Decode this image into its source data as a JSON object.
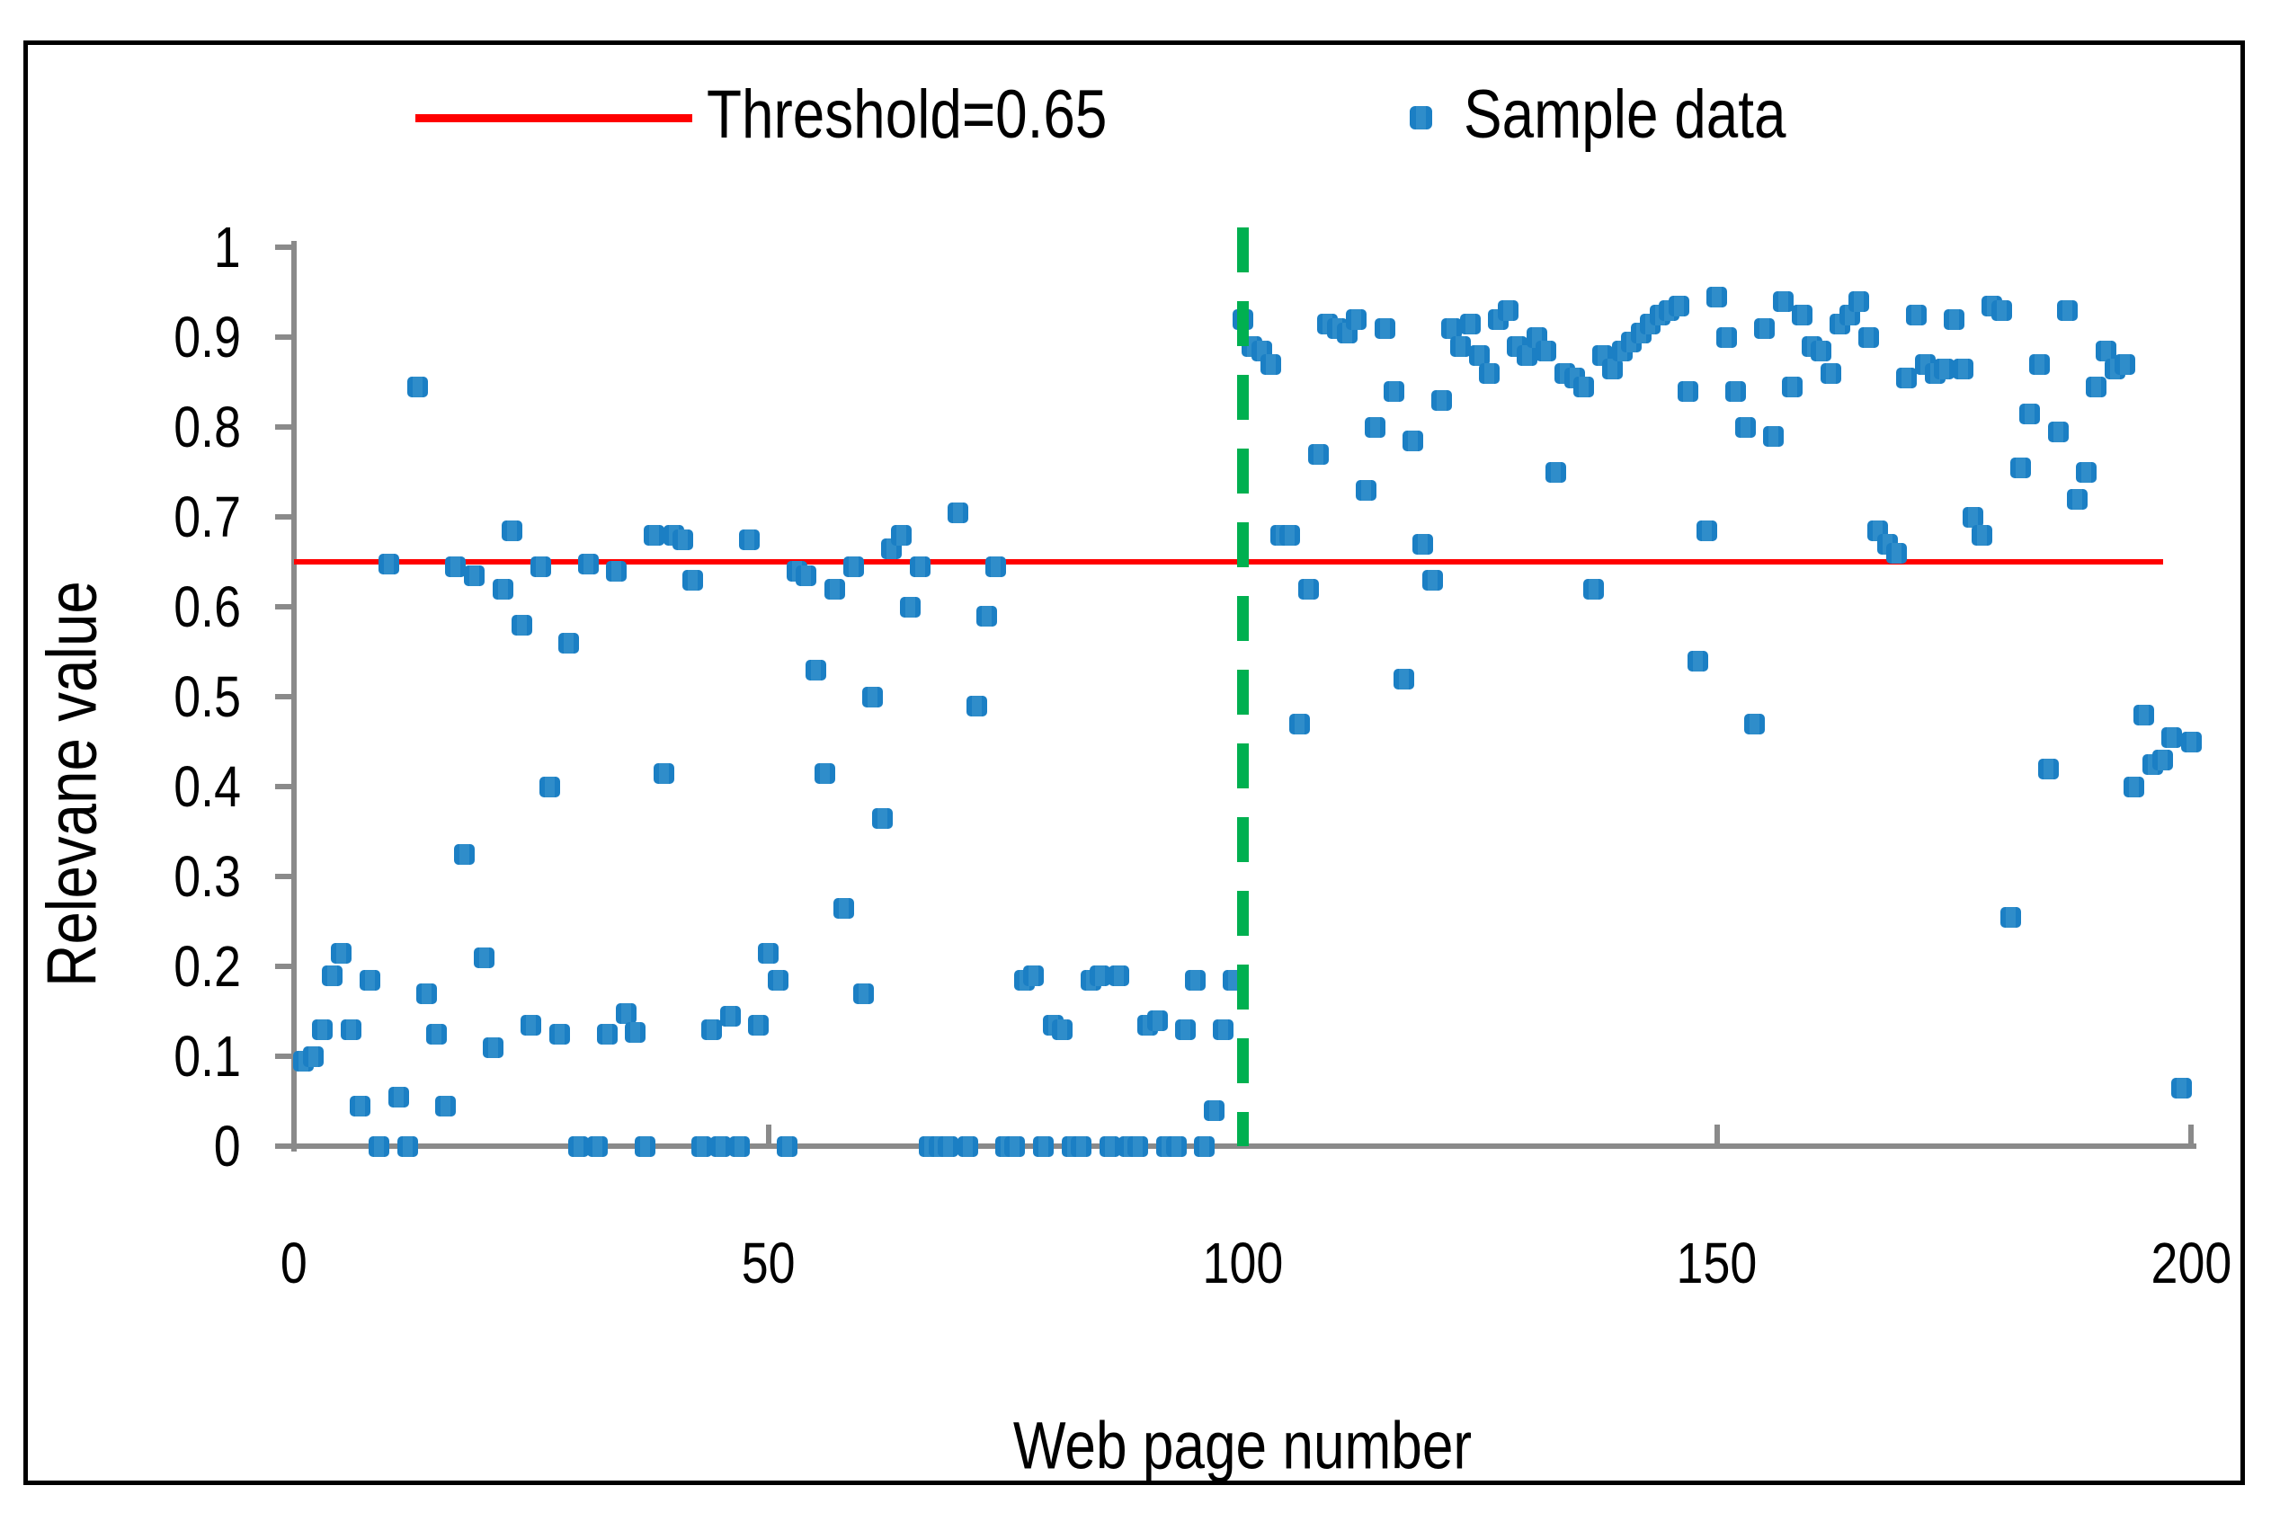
{
  "legend": {
    "threshold_label": "Threshold=0.65",
    "sample_label": "Sample data"
  },
  "axes": {
    "y_title": "Relevane value",
    "x_title": "Web page number",
    "y_tick_labels": [
      "1",
      "0.9",
      "0.8",
      "0.7",
      "0.6",
      "0.5",
      "0.4",
      "0.3",
      "0.2",
      "0.1",
      "0"
    ],
    "x_tick_labels": [
      "0",
      "50",
      "100",
      "150",
      "200"
    ]
  },
  "colors": {
    "threshold_line": "#ff0000",
    "divider_line": "#00b050",
    "marker_fill": "#1b7fc4",
    "marker_inner": "#2f8dca",
    "axis": "#8a8a8a",
    "text": "#000000",
    "figure_border": "#000000"
  },
  "chart_data": {
    "type": "scatter",
    "title": "",
    "xlabel": "Web page number",
    "ylabel": "Relevane value",
    "xlim": [
      0,
      200
    ],
    "ylim": [
      0,
      1
    ],
    "x_ticks": [
      0,
      50,
      100,
      150,
      200
    ],
    "y_ticks": [
      0,
      0.1,
      0.2,
      0.3,
      0.4,
      0.5,
      0.6,
      0.7,
      0.8,
      0.9,
      1
    ],
    "grid": false,
    "legend_position": "top",
    "threshold_value": 0.65,
    "divider_x": 100,
    "series": [
      {
        "name": "Sample data",
        "points": [
          [
            1,
            0.095
          ],
          [
            2,
            0.1
          ],
          [
            3,
            0.13
          ],
          [
            4,
            0.19
          ],
          [
            5,
            0.215
          ],
          [
            6,
            0.13
          ],
          [
            7,
            0.045
          ],
          [
            8,
            0.185
          ],
          [
            9,
            0
          ],
          [
            10,
            0.648
          ],
          [
            11,
            0.055
          ],
          [
            12,
            0
          ],
          [
            13,
            0.845
          ],
          [
            14,
            0.17
          ],
          [
            15,
            0.125
          ],
          [
            16,
            0.045
          ],
          [
            17,
            0.645
          ],
          [
            18,
            0.325
          ],
          [
            19,
            0.635
          ],
          [
            20,
            0.21
          ],
          [
            21,
            0.11
          ],
          [
            22,
            0.62
          ],
          [
            23,
            0.685
          ],
          [
            24,
            0.58
          ],
          [
            25,
            0.135
          ],
          [
            26,
            0.645
          ],
          [
            27,
            0.4
          ],
          [
            28,
            0.125
          ],
          [
            29,
            0.56
          ],
          [
            30,
            0
          ],
          [
            31,
            0.648
          ],
          [
            32,
            0
          ],
          [
            33,
            0.125
          ],
          [
            34,
            0.64
          ],
          [
            35,
            0.148
          ],
          [
            36,
            0.127
          ],
          [
            37,
            0
          ],
          [
            38,
            0.68
          ],
          [
            39,
            0.415
          ],
          [
            40,
            0.68
          ],
          [
            41,
            0.675
          ],
          [
            42,
            0.63
          ],
          [
            43,
            0
          ],
          [
            44,
            0.13
          ],
          [
            45,
            0
          ],
          [
            46,
            0.145
          ],
          [
            47,
            0
          ],
          [
            48,
            0.675
          ],
          [
            49,
            0.135
          ],
          [
            50,
            0.215
          ],
          [
            51,
            0.185
          ],
          [
            52,
            0
          ],
          [
            53,
            0.64
          ],
          [
            54,
            0.635
          ],
          [
            55,
            0.53
          ],
          [
            56,
            0.415
          ],
          [
            57,
            0.62
          ],
          [
            58,
            0.265
          ],
          [
            59,
            0.645
          ],
          [
            60,
            0.17
          ],
          [
            61,
            0.5
          ],
          [
            62,
            0.365
          ],
          [
            63,
            0.665
          ],
          [
            64,
            0.68
          ],
          [
            65,
            0.6
          ],
          [
            66,
            0.645
          ],
          [
            67,
            0
          ],
          [
            68,
            0
          ],
          [
            69,
            0
          ],
          [
            70,
            0.705
          ],
          [
            71,
            0
          ],
          [
            72,
            0.49
          ],
          [
            73,
            0.59
          ],
          [
            74,
            0.645
          ],
          [
            75,
            0
          ],
          [
            76,
            0
          ],
          [
            77,
            0.185
          ],
          [
            78,
            0.19
          ],
          [
            79,
            0
          ],
          [
            80,
            0.135
          ],
          [
            81,
            0.13
          ],
          [
            82,
            0
          ],
          [
            83,
            0
          ],
          [
            84,
            0.185
          ],
          [
            85,
            0.19
          ],
          [
            86,
            0
          ],
          [
            87,
            0.19
          ],
          [
            88,
            0
          ],
          [
            89,
            0
          ],
          [
            90,
            0.135
          ],
          [
            91,
            0.14
          ],
          [
            92,
            0
          ],
          [
            93,
            0
          ],
          [
            94,
            0.13
          ],
          [
            95,
            0.185
          ],
          [
            96,
            0
          ],
          [
            97,
            0.04
          ],
          [
            98,
            0.13
          ],
          [
            99,
            0.185
          ],
          [
            100,
            0.92
          ],
          [
            101,
            0.89
          ],
          [
            102,
            0.885
          ],
          [
            103,
            0.87
          ],
          [
            104,
            0.68
          ],
          [
            105,
            0.68
          ],
          [
            106,
            0.47
          ],
          [
            107,
            0.62
          ],
          [
            108,
            0.77
          ],
          [
            109,
            0.915
          ],
          [
            110,
            0.91
          ],
          [
            111,
            0.905
          ],
          [
            112,
            0.92
          ],
          [
            113,
            0.73
          ],
          [
            114,
            0.8
          ],
          [
            115,
            0.91
          ],
          [
            116,
            0.84
          ],
          [
            117,
            0.52
          ],
          [
            118,
            0.785
          ],
          [
            119,
            0.67
          ],
          [
            120,
            0.63
          ],
          [
            121,
            0.83
          ],
          [
            122,
            0.91
          ],
          [
            123,
            0.89
          ],
          [
            124,
            0.915
          ],
          [
            125,
            0.88
          ],
          [
            126,
            0.86
          ],
          [
            127,
            0.92
          ],
          [
            128,
            0.93
          ],
          [
            129,
            0.89
          ],
          [
            130,
            0.88
          ],
          [
            131,
            0.9
          ],
          [
            132,
            0.885
          ],
          [
            133,
            0.75
          ],
          [
            134,
            0.86
          ],
          [
            135,
            0.855
          ],
          [
            136,
            0.845
          ],
          [
            137,
            0.62
          ],
          [
            138,
            0.88
          ],
          [
            139,
            0.865
          ],
          [
            140,
            0.885
          ],
          [
            141,
            0.895
          ],
          [
            142,
            0.905
          ],
          [
            143,
            0.915
          ],
          [
            144,
            0.925
          ],
          [
            145,
            0.93
          ],
          [
            146,
            0.935
          ],
          [
            147,
            0.84
          ],
          [
            148,
            0.54
          ],
          [
            149,
            0.685
          ],
          [
            150,
            0.945
          ],
          [
            151,
            0.9
          ],
          [
            152,
            0.84
          ],
          [
            153,
            0.8
          ],
          [
            154,
            0.47
          ],
          [
            155,
            0.91
          ],
          [
            156,
            0.79
          ],
          [
            157,
            0.94
          ],
          [
            158,
            0.845
          ],
          [
            159,
            0.925
          ],
          [
            160,
            0.89
          ],
          [
            161,
            0.885
          ],
          [
            162,
            0.86
          ],
          [
            163,
            0.915
          ],
          [
            164,
            0.925
          ],
          [
            165,
            0.94
          ],
          [
            166,
            0.9
          ],
          [
            167,
            0.685
          ],
          [
            168,
            0.67
          ],
          [
            169,
            0.66
          ],
          [
            170,
            0.855
          ],
          [
            171,
            0.925
          ],
          [
            172,
            0.87
          ],
          [
            173,
            0.86
          ],
          [
            174,
            0.865
          ],
          [
            175,
            0.92
          ],
          [
            176,
            0.865
          ],
          [
            177,
            0.7
          ],
          [
            178,
            0.68
          ],
          [
            179,
            0.935
          ],
          [
            180,
            0.93
          ],
          [
            181,
            0.255
          ],
          [
            182,
            0.755
          ],
          [
            183,
            0.815
          ],
          [
            184,
            0.87
          ],
          [
            185,
            0.42
          ],
          [
            186,
            0.795
          ],
          [
            187,
            0.93
          ],
          [
            188,
            0.72
          ],
          [
            189,
            0.75
          ],
          [
            190,
            0.845
          ],
          [
            191,
            0.885
          ],
          [
            192,
            0.865
          ],
          [
            193,
            0.87
          ],
          [
            194,
            0.4
          ],
          [
            195,
            0.48
          ],
          [
            196,
            0.425
          ],
          [
            197,
            0.43
          ],
          [
            198,
            0.455
          ],
          [
            199,
            0.065
          ],
          [
            200,
            0.45
          ]
        ]
      }
    ]
  }
}
